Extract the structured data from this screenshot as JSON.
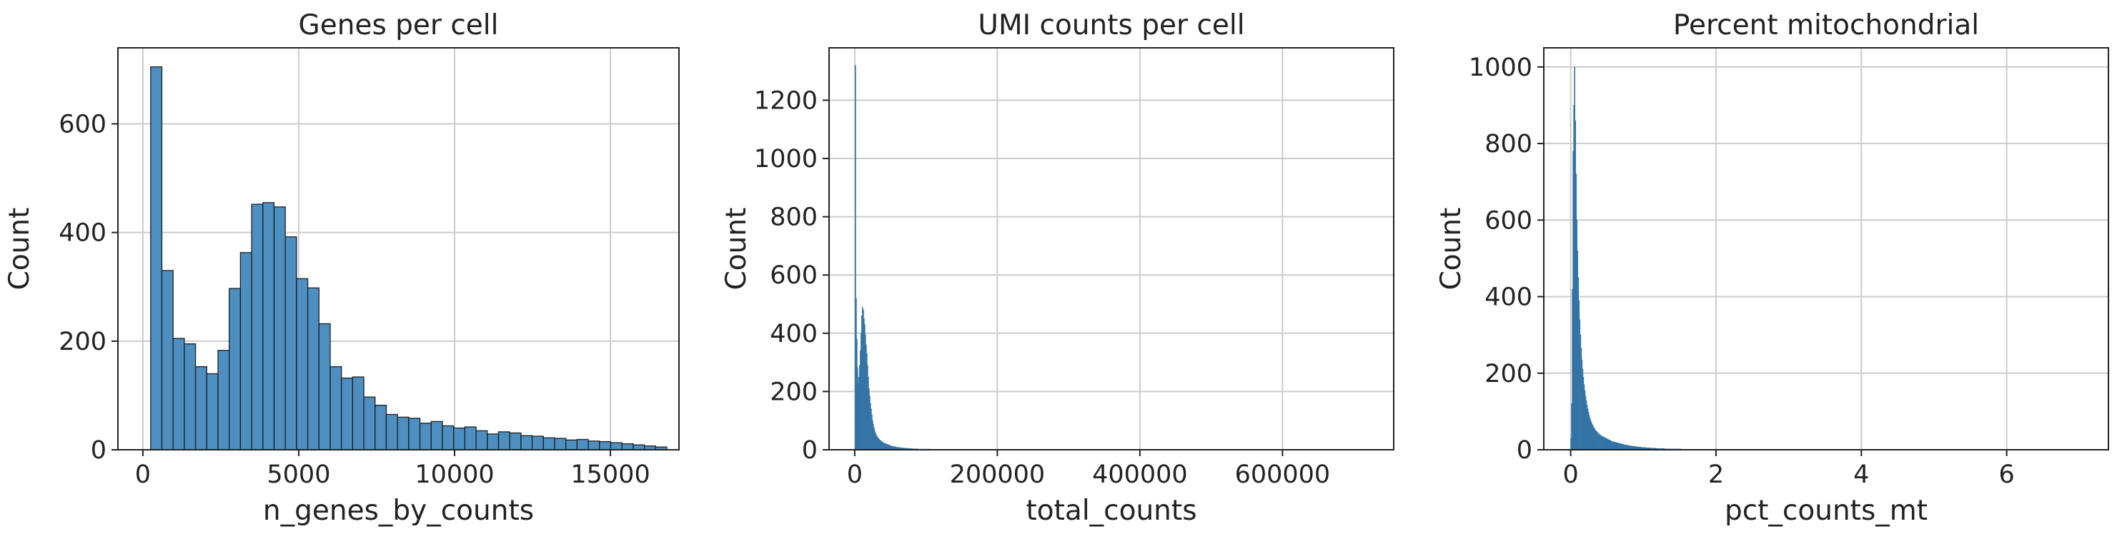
{
  "accent_color": "#3d80b4",
  "chart_data": [
    {
      "type": "histogram",
      "title": "Genes per cell",
      "xlabel": "n_genes_by_counts",
      "ylabel": "Count",
      "xlim": [
        -800,
        17200
      ],
      "ylim": [
        0,
        740
      ],
      "xticks": [
        0,
        5000,
        10000,
        15000
      ],
      "xtick_labels": [
        "0",
        "5000",
        "10000",
        "15000"
      ],
      "yticks": [
        0,
        200,
        400,
        600
      ],
      "ytick_labels": [
        "0",
        "200",
        "400",
        "600"
      ],
      "grid": true,
      "bin_start": 250,
      "bin_width": 360,
      "counts": [
        705,
        330,
        205,
        195,
        153,
        140,
        183,
        297,
        363,
        452,
        455,
        447,
        392,
        315,
        298,
        232,
        153,
        132,
        134,
        97,
        82,
        65,
        60,
        58,
        49,
        52,
        44,
        40,
        42,
        35,
        29,
        33,
        31,
        26,
        25,
        22,
        21,
        18,
        19,
        16,
        15,
        13,
        11,
        9,
        7,
        5
      ]
    },
    {
      "type": "histogram",
      "title": "UMI counts per cell",
      "xlabel": "total_counts",
      "ylabel": "Count",
      "xlim": [
        -36000,
        756000
      ],
      "ylim": [
        0,
        1380
      ],
      "xticks": [
        0,
        200000,
        400000,
        600000
      ],
      "xtick_labels": [
        "0",
        "200000",
        "400000",
        "600000"
      ],
      "yticks": [
        0,
        200,
        400,
        600,
        800,
        1000,
        1200
      ],
      "ytick_labels": [
        "0",
        "200",
        "400",
        "600",
        "800",
        "1000",
        "1200"
      ],
      "grid": true,
      "bin_start": 500,
      "bin_width": 1000,
      "counts": [
        1320,
        520,
        380,
        280,
        230,
        250,
        290,
        340,
        400,
        460,
        490,
        480,
        450,
        430,
        395,
        360,
        330,
        290,
        250,
        210,
        185,
        160,
        140,
        120,
        100,
        88,
        76,
        66,
        58,
        52,
        47,
        43,
        40,
        37,
        34,
        32,
        30,
        28,
        26,
        24,
        23,
        22,
        21,
        20,
        19,
        18,
        17,
        16,
        15,
        14,
        13,
        12,
        12,
        11,
        11,
        10,
        10,
        9,
        9,
        8,
        8,
        8,
        7,
        7,
        7,
        6,
        6,
        6,
        6,
        5,
        5,
        5,
        5,
        5,
        4,
        4,
        4,
        4,
        4,
        4,
        3,
        3,
        3,
        3,
        3,
        3,
        3,
        3,
        2,
        2,
        2,
        2,
        2,
        2,
        2,
        2,
        2,
        2,
        2,
        2,
        2,
        2,
        2,
        2,
        2,
        2,
        1,
        1,
        1,
        1,
        1,
        1,
        1,
        1,
        1,
        1,
        1,
        1,
        1,
        1,
        1,
        1,
        1,
        1,
        1,
        1,
        1,
        1,
        1,
        1
      ]
    },
    {
      "type": "histogram",
      "title": "Percent mitochondrial",
      "xlabel": "pct_counts_mt",
      "ylabel": "Count",
      "xlim": [
        -0.37,
        7.4
      ],
      "ylim": [
        0,
        1050
      ],
      "xticks": [
        0,
        2,
        4,
        6
      ],
      "xtick_labels": [
        "0",
        "2",
        "4",
        "6"
      ],
      "yticks": [
        0,
        200,
        400,
        600,
        800,
        1000
      ],
      "ytick_labels": [
        "0",
        "200",
        "400",
        "600",
        "800",
        "1000"
      ],
      "grid": true,
      "bin_start": 0,
      "bin_width": 0.01,
      "counts": [
        30,
        120,
        420,
        780,
        900,
        1000,
        860,
        720,
        600,
        520,
        450,
        390,
        340,
        300,
        265,
        235,
        210,
        190,
        170,
        155,
        140,
        128,
        117,
        107,
        98,
        90,
        83,
        77,
        72,
        67,
        63,
        59,
        56,
        53,
        50,
        48,
        46,
        44,
        42,
        40,
        39,
        37,
        36,
        35,
        34,
        33,
        32,
        31,
        30,
        29,
        28,
        27,
        26,
        25,
        24,
        23,
        22,
        21,
        21,
        20,
        20,
        19,
        19,
        18,
        18,
        17,
        17,
        16,
        16,
        15,
        15,
        14,
        14,
        13,
        13,
        12,
        12,
        12,
        11,
        11,
        11,
        10,
        10,
        10,
        9,
        9,
        9,
        9,
        8,
        8,
        8,
        8,
        7,
        7,
        7,
        7,
        7,
        6,
        6,
        6,
        6,
        6,
        6,
        5,
        5,
        5,
        5,
        5,
        5,
        5,
        4,
        4,
        4,
        4,
        4,
        4,
        4,
        4,
        3,
        3,
        3,
        3,
        3,
        3,
        3,
        3,
        3,
        3,
        3,
        2,
        2,
        2,
        2,
        2,
        2,
        2,
        2,
        2,
        2,
        2,
        2,
        2,
        2,
        2,
        2,
        2,
        2,
        2,
        2,
        2,
        2,
        2,
        1,
        1,
        1,
        1,
        1,
        1,
        1,
        1,
        1,
        1,
        1,
        1,
        1,
        1,
        1,
        1,
        1,
        1,
        1,
        1,
        1,
        1,
        1,
        1,
        1,
        1,
        1,
        1,
        1,
        1,
        1,
        1,
        1,
        1,
        1,
        1,
        1,
        1,
        1,
        1,
        1,
        1,
        1,
        1,
        1,
        1,
        1,
        1,
        1,
        1,
        1,
        1
      ]
    }
  ]
}
